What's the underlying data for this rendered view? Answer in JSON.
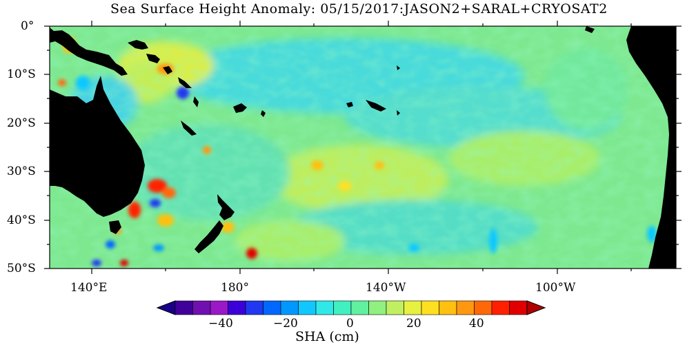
{
  "title": "Sea Surface Height Anomaly: 05/15/2017:JASON2+SARAL+CRYOSAT2",
  "map": {
    "lat_labels": [
      "0°",
      "10°S",
      "20°S",
      "30°S",
      "40°S",
      "50°S"
    ],
    "lon_labels": [
      "140°E",
      "180°",
      "140°W",
      "100°W"
    ],
    "background_color": "#7ee890",
    "land_color": "#000000"
  },
  "colorbar": {
    "title": "SHA (cm)",
    "tick_labels": [
      "−40",
      "−20",
      "0",
      "20",
      "40"
    ],
    "colors": [
      "#18008a",
      "#40009a",
      "#7010b0",
      "#9a18c8",
      "#3c00d8",
      "#2038f0",
      "#0068ff",
      "#0098ff",
      "#10c8ff",
      "#30e8e8",
      "#40f0c0",
      "#60f0a0",
      "#90f080",
      "#c0f060",
      "#e8f040",
      "#ffe020",
      "#ffc010",
      "#ff9810",
      "#ff6808",
      "#ff2000",
      "#e00000",
      "#b00000"
    ]
  }
}
